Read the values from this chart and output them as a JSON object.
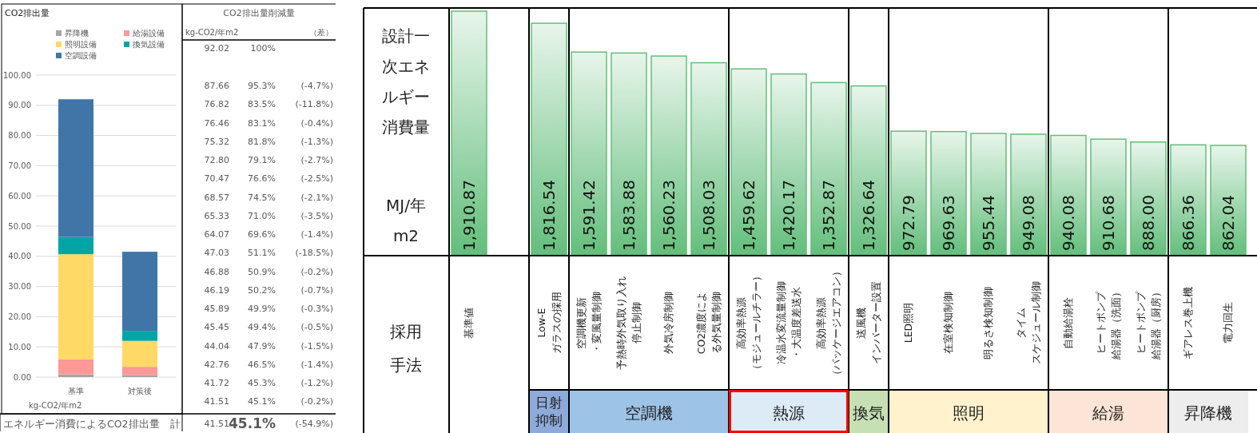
{
  "chart_data": [
    {
      "type": "bar",
      "title": "CO2排出量",
      "xlabel": "kg-CO2/年m2",
      "categories": [
        "基準",
        "対策後"
      ],
      "stacked": true,
      "series": [
        {
          "name": "昇降機",
          "color": "#a5a5a5",
          "values": [
            0.9,
            0.7
          ]
        },
        {
          "name": "給湯設備",
          "color": "#ff9896",
          "values": [
            5.0,
            2.7
          ]
        },
        {
          "name": "照明設備",
          "color": "#ffd966",
          "values": [
            34.8,
            8.6
          ]
        },
        {
          "name": "換気設備",
          "color": "#00a5a5",
          "values": [
            5.7,
            3.3
          ]
        },
        {
          "name": "空調設備",
          "color": "#4075a8",
          "values": [
            45.6,
            26.2
          ]
        }
      ],
      "ylim": [
        0,
        100
      ],
      "yticks": [
        {
          "value": 0,
          "label": "0.00"
        },
        {
          "value": 10,
          "label": "10.00"
        },
        {
          "value": 20,
          "label": "20.00"
        },
        {
          "value": 30,
          "label": "30.00"
        },
        {
          "value": 40,
          "label": "40.00"
        },
        {
          "value": 50,
          "label": "50.00"
        },
        {
          "value": 60,
          "label": "60.00"
        },
        {
          "value": 70,
          "label": "70.00"
        },
        {
          "value": 80,
          "label": "80.00"
        },
        {
          "value": 90,
          "label": "90.00"
        },
        {
          "value": 100,
          "label": "100.00"
        }
      ],
      "grid": "y",
      "legend": "top"
    },
    {
      "type": "other",
      "title": "CO2排出量削減量",
      "annotations": [
        "kg-CO2/年m2",
        "（差）",
        "92.02",
        "100%",
        "87.66",
        "95.3%",
        "(-4.7%)",
        "76.82",
        "83.5%",
        "(-11.8%)",
        "76.46",
        "83.1%",
        "(-0.4%)",
        "75.32",
        "81.8%",
        "(-1.3%)",
        "72.80",
        "79.1%",
        "(-2.7%)",
        "70.47",
        "76.6%",
        "(-2.5%)",
        "68.57",
        "74.5%",
        "(-2.1%)",
        "65.33",
        "71.0%",
        "(-3.5%)",
        "64.07",
        "69.6%",
        "(-1.4%)",
        "47.03",
        "51.1%",
        "(-18.5%)",
        "46.88",
        "50.9%",
        "(-0.2%)",
        "46.19",
        "50.2%",
        "(-0.7%)",
        "45.89",
        "49.9%",
        "(-0.3%)",
        "45.45",
        "49.4%",
        "(-0.5%)",
        "44.04",
        "47.9%",
        "(-1.5%)",
        "42.76",
        "46.5%",
        "(-1.4%)",
        "41.72",
        "45.3%",
        "(-1.2%)",
        "41.51",
        "45.1%",
        "(-0.2%)",
        "エネルギー消費によるCO2排出量　計",
        "41.51",
        "45.1%",
        "(-54.9%)"
      ]
    },
    {
      "type": "bar",
      "ylabel": "設計一次エネルギー消費量",
      "xlabel": "採用手法",
      "annotations": [
        "MJ/年m2",
        "日射抑制",
        "空調機",
        "熱源",
        "換気",
        "照明",
        "給湯",
        "昇降機"
      ],
      "categories": [
        "基準値",
        "Low-Eガラスの採用",
        "空調機更新・変風量制御",
        "予熱時外気取り入れ停止制御",
        "外気冷房制御",
        "CO2濃度による外気量制御",
        "高効率熱源（モジュールチラー）",
        "冷温水変流量制御・大温度差送水",
        "高効率熱源（パッケージエアコン）",
        "送風機インバーター設置",
        "LED照明",
        "在室検知制御",
        "明るさ検知制御",
        "タイムスケジュール制御",
        "自動給湯栓",
        "ヒートポンプ給湯器（洗面）",
        "ヒートポンプ給湯器（厨房）",
        "ギアレス巻上機",
        "電力回生"
      ],
      "series": [
        {
          "color": "#63be7b",
          "values": [
            1910.87,
            1816.54,
            1591.42,
            1583.88,
            1560.23,
            1508.03,
            1459.62,
            1420.17,
            1352.87,
            1326.64,
            972.79,
            969.63,
            955.44,
            949.08,
            940.08,
            910.68,
            888.0,
            866.36,
            862.04
          ],
          "value_labels": [
            "1,910.87",
            "1,816.54",
            "1,591.42",
            "1,583.88",
            "1,560.23",
            "1,508.03",
            "1,459.62",
            "1,420.17",
            "1,352.87",
            "1,326.64",
            "972.79",
            "969.63",
            "955.44",
            "949.08",
            "940.08",
            "910.68",
            "888.00",
            "866.36",
            "862.04"
          ]
        }
      ]
    }
  ]
}
